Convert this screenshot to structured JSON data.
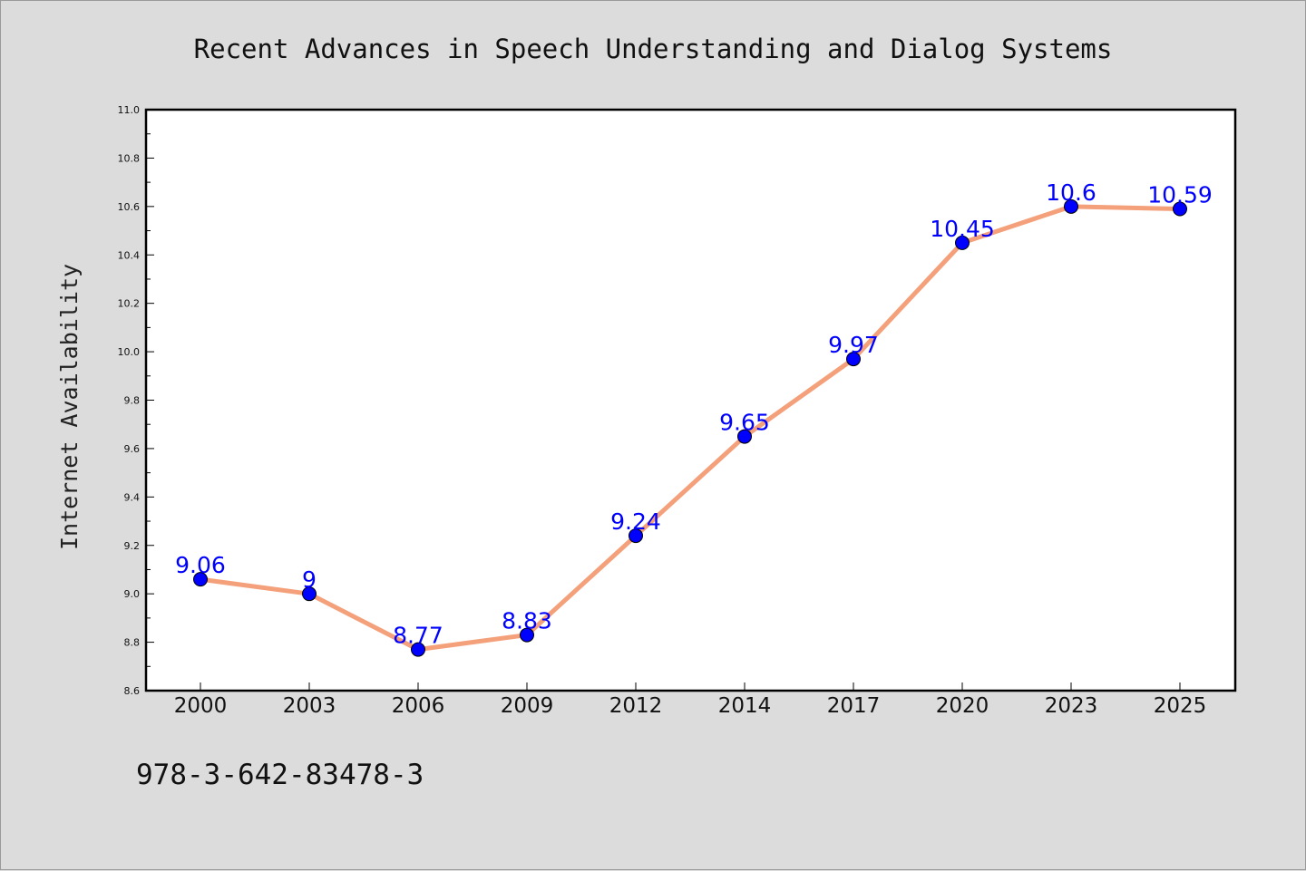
{
  "chart_data": {
    "type": "line",
    "title": "Recent Advances in Speech Understanding and Dialog Systems",
    "xlabel": "",
    "ylabel": "Internet Availability",
    "categories": [
      "2000",
      "2003",
      "2006",
      "2009",
      "2012",
      "2014",
      "2017",
      "2020",
      "2023",
      "2025"
    ],
    "series": [
      {
        "values": [
          9.06,
          9.0,
          8.77,
          8.83,
          9.24,
          9.65,
          9.97,
          10.45,
          10.6,
          10.59
        ]
      }
    ],
    "data_labels": [
      "9.06",
      "9",
      "8.77",
      "8.83",
      "9.24",
      "9.65",
      "9.97",
      "10.45",
      "10.6",
      "10.59"
    ],
    "ylim": [
      8.6,
      11.0
    ],
    "yticks": [
      "8.6",
      "8.8",
      "9.0",
      "9.2",
      "9.4",
      "9.6",
      "9.8",
      "10.0",
      "10.2",
      "10.4",
      "10.6",
      "10.8",
      "11.0"
    ],
    "grid": false,
    "legend": "none",
    "line_color": "#f4a07a",
    "marker_color": "#0000ff",
    "label_color": "#0000ff"
  },
  "footer": {
    "isbn": "978-3-642-83478-3"
  }
}
